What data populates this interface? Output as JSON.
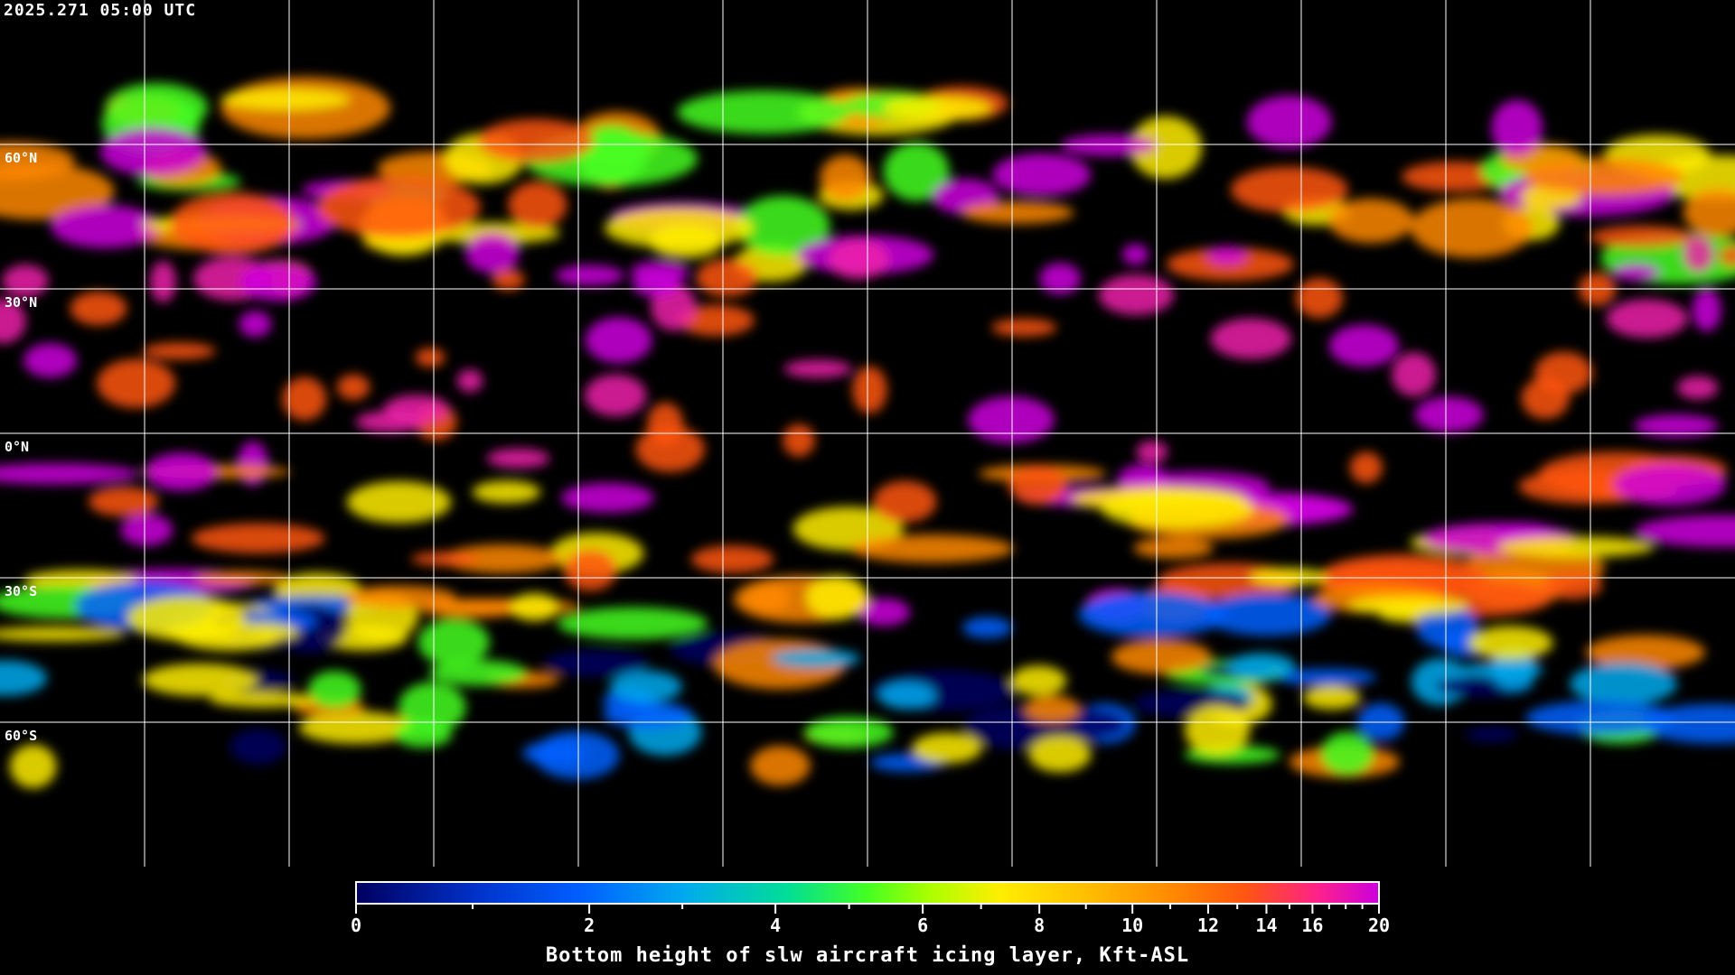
{
  "header": {
    "timestamp": "2025.271 05:00 UTC"
  },
  "map": {
    "projection": "equirectangular",
    "graticule_spacing_deg": 30,
    "lat_labels": [
      "60°N",
      "30°N",
      "0°N",
      "30°S",
      "60°S"
    ],
    "coastline_color": "#ffffff",
    "background": "#000000"
  },
  "colorbar": {
    "min": 0,
    "max": 20,
    "tick_labels": [
      "0",
      "2",
      "4",
      "6",
      "8",
      "10",
      "12",
      "14",
      "16",
      "20"
    ],
    "title": "Bottom height of slw aircraft icing layer, Kft-ASL",
    "colors": [
      "#000060",
      "#0060ff",
      "#00aaee",
      "#44ff22",
      "#ffee00",
      "#ff8800",
      "#ff5511",
      "#cc00dd"
    ]
  }
}
